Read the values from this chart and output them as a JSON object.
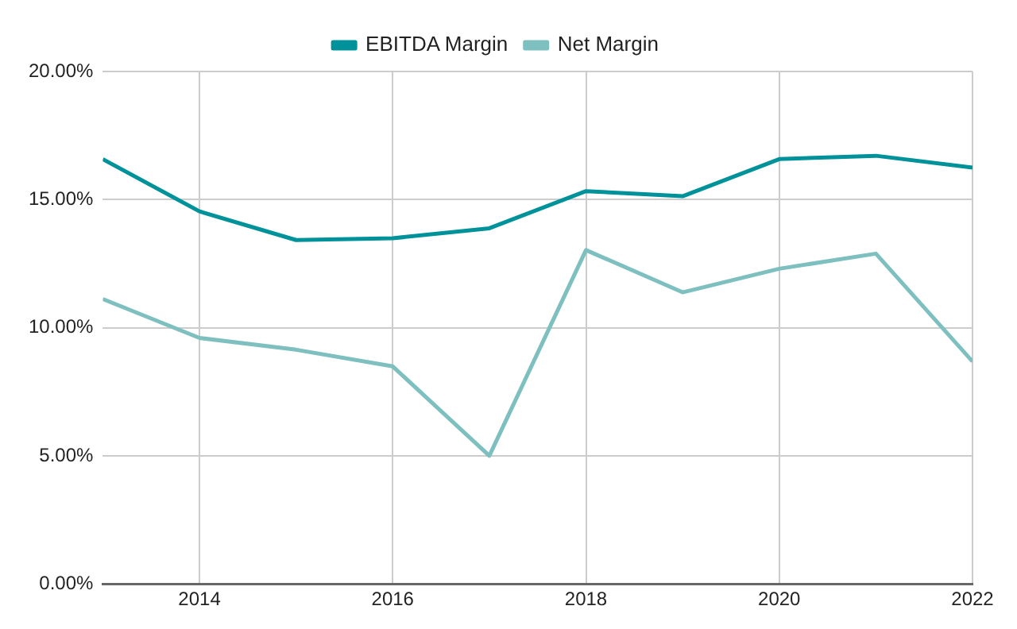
{
  "chart_data": {
    "type": "line",
    "x": [
      2013,
      2014,
      2015,
      2016,
      2017,
      2018,
      2019,
      2020,
      2021,
      2022
    ],
    "series": [
      {
        "name": "EBITDA Margin",
        "color": "#00929a",
        "values": [
          16.58,
          14.54,
          13.42,
          13.49,
          13.88,
          15.33,
          15.13,
          16.58,
          16.71,
          16.25
        ]
      },
      {
        "name": "Net Margin",
        "color": "#7ebfbf",
        "values": [
          11.12,
          9.6,
          9.14,
          8.49,
          5.0,
          13.03,
          11.38,
          12.3,
          12.89,
          8.68
        ]
      }
    ],
    "xlim": [
      2013,
      2022
    ],
    "xticks": [
      2014,
      2016,
      2018,
      2020,
      2022
    ],
    "ylim": [
      0,
      20
    ],
    "yticks": [
      {
        "value": 0,
        "label": "0.00%"
      },
      {
        "value": 5,
        "label": "5.00%"
      },
      {
        "value": 10,
        "label": "10.00%"
      },
      {
        "value": 15,
        "label": "15.00%"
      },
      {
        "value": 20,
        "label": "20.00%"
      }
    ],
    "grid": true,
    "legend": "top",
    "marker": "none",
    "line_style": "solid"
  }
}
